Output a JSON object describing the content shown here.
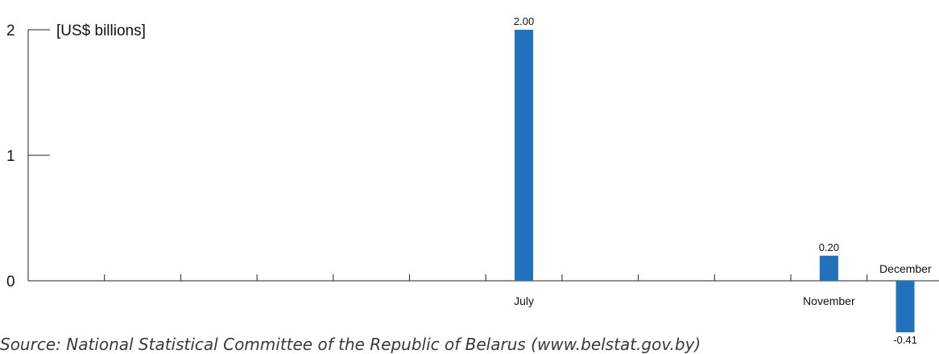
{
  "chart_data": {
    "type": "bar",
    "unit_label": "[US$ billions]",
    "categories": [
      "",
      "",
      "",
      "",
      "",
      "",
      "July",
      "",
      "",
      "",
      "November",
      "December"
    ],
    "values": [
      null,
      null,
      null,
      null,
      null,
      null,
      2.0,
      null,
      null,
      null,
      0.2,
      -0.41
    ],
    "value_labels": [
      "",
      "",
      "",
      "",
      "",
      "",
      "2.00",
      "",
      "",
      "",
      "0.20",
      "-0.41"
    ],
    "yticks": [
      "0",
      "1",
      "2"
    ],
    "ylim": [
      -0.41,
      2
    ],
    "bar_color": "#1f72bb",
    "legend": "none",
    "grid": false
  },
  "source": "Source: National Statistical Committee of the Republic of Belarus (www.belstat.gov.by)"
}
